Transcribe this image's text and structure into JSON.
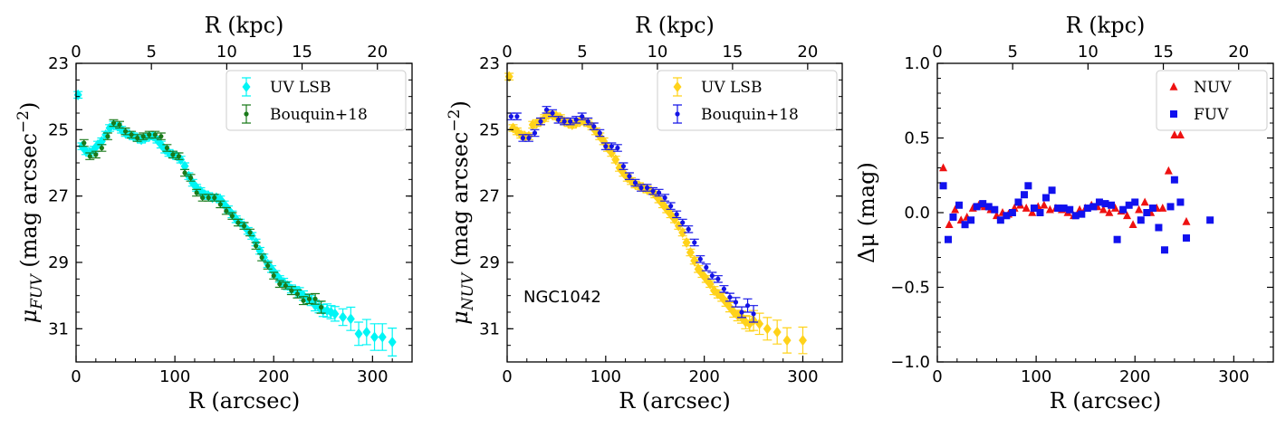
{
  "figure": {
    "title": ""
  },
  "colors": {
    "fuv_lsb": "#00f5f5",
    "fuv_bouquin": "#1a7a1a",
    "nuv_lsb": "#ffd21a",
    "nuv_bouquin": "#1414e6",
    "nuv_delta": "#ee1111",
    "fuv_delta": "#1111ee"
  },
  "chart_data": [
    {
      "type": "scatter",
      "panel": "FUV profile",
      "xlabel": "R (arcsec)",
      "ylabel": "μ_FUV (mag arcsec^-2)",
      "ylabel_parts": {
        "mu": "μ",
        "sub": "FUV",
        "rest": " (mag arcsec",
        "sup": "−2",
        "close": ")"
      },
      "top_xlabel": "R (kpc)",
      "xlim": [
        0,
        340
      ],
      "ylim": [
        32,
        23
      ],
      "top_xlim": [
        0,
        22.3
      ],
      "xticks": [
        0,
        100,
        200,
        300
      ],
      "yticks": [
        23,
        25,
        27,
        29,
        31
      ],
      "top_xticks": [
        0,
        5,
        10,
        15,
        20
      ],
      "legend": {
        "position": "top-right",
        "entries": [
          "UV LSB",
          "Bouquin+18"
        ]
      },
      "annotation": "",
      "series": [
        {
          "name": "UV LSB",
          "marker": "diamond",
          "color_key": "fuv_lsb",
          "x": [
            2,
            6,
            10,
            14,
            18,
            22,
            26,
            30,
            34,
            38,
            42,
            46,
            50,
            54,
            58,
            62,
            66,
            70,
            74,
            78,
            82,
            86,
            90,
            94,
            98,
            102,
            106,
            110,
            114,
            118,
            122,
            126,
            130,
            134,
            138,
            142,
            146,
            150,
            154,
            158,
            162,
            166,
            170,
            174,
            178,
            182,
            186,
            190,
            194,
            198,
            202,
            206,
            210,
            214,
            218,
            222,
            226,
            230,
            234,
            238,
            242,
            246,
            250,
            254,
            258,
            262,
            270,
            278,
            286,
            294,
            302,
            310,
            320
          ],
          "y": [
            23.95,
            25.5,
            25.65,
            25.7,
            25.6,
            25.45,
            25.35,
            25.15,
            24.95,
            24.85,
            24.9,
            25.0,
            25.1,
            25.15,
            25.2,
            25.25,
            25.3,
            25.25,
            25.2,
            25.2,
            25.3,
            25.45,
            25.6,
            25.7,
            25.75,
            25.8,
            25.9,
            26.1,
            26.4,
            26.6,
            26.75,
            26.85,
            26.95,
            27.0,
            27.05,
            27.05,
            27.1,
            27.25,
            27.4,
            27.55,
            27.7,
            27.8,
            27.9,
            28.05,
            28.2,
            28.4,
            28.65,
            28.85,
            29.05,
            29.2,
            29.35,
            29.5,
            29.6,
            29.7,
            29.8,
            29.85,
            29.9,
            30.0,
            30.1,
            30.15,
            30.3,
            30.35,
            30.45,
            30.45,
            30.5,
            30.55,
            30.65,
            30.7,
            31.15,
            31.1,
            31.25,
            31.25,
            31.4
          ],
          "yerr": [
            0.1,
            0.1,
            0.1,
            0.1,
            0.1,
            0.1,
            0.1,
            0.1,
            0.1,
            0.1,
            0.1,
            0.1,
            0.1,
            0.1,
            0.1,
            0.1,
            0.1,
            0.1,
            0.1,
            0.1,
            0.1,
            0.1,
            0.1,
            0.1,
            0.1,
            0.1,
            0.1,
            0.1,
            0.1,
            0.1,
            0.1,
            0.1,
            0.1,
            0.1,
            0.1,
            0.1,
            0.1,
            0.1,
            0.1,
            0.1,
            0.1,
            0.1,
            0.1,
            0.1,
            0.1,
            0.1,
            0.1,
            0.1,
            0.1,
            0.1,
            0.1,
            0.1,
            0.12,
            0.12,
            0.12,
            0.12,
            0.14,
            0.14,
            0.15,
            0.15,
            0.16,
            0.17,
            0.18,
            0.2,
            0.2,
            0.22,
            0.25,
            0.35,
            0.35,
            0.38,
            0.4,
            0.4,
            0.42
          ]
        },
        {
          "name": "Bouquin+18",
          "marker": "circle",
          "color_key": "fuv_bouquin",
          "x": [
            8,
            14,
            20,
            26,
            32,
            38,
            44,
            50,
            56,
            62,
            68,
            74,
            80,
            86,
            92,
            98,
            104,
            110,
            116,
            122,
            128,
            134,
            140,
            146,
            152,
            158,
            164,
            170,
            176,
            182,
            188,
            194,
            200,
            206,
            212,
            218,
            224,
            230,
            236,
            242,
            248
          ],
          "y": [
            25.4,
            25.8,
            25.75,
            25.55,
            25.2,
            24.8,
            24.85,
            25.05,
            25.15,
            25.25,
            25.2,
            25.15,
            25.15,
            25.2,
            25.55,
            25.75,
            25.8,
            26.3,
            26.45,
            26.9,
            27.05,
            27.05,
            27.05,
            27.25,
            27.45,
            27.6,
            27.8,
            27.9,
            28.1,
            28.5,
            28.85,
            29.1,
            29.4,
            29.65,
            29.7,
            29.85,
            29.95,
            30.15,
            30.1,
            30.1,
            30.35
          ],
          "yerr": [
            0.1,
            0.1,
            0.1,
            0.1,
            0.1,
            0.1,
            0.1,
            0.1,
            0.1,
            0.1,
            0.1,
            0.1,
            0.1,
            0.1,
            0.1,
            0.1,
            0.1,
            0.1,
            0.1,
            0.1,
            0.1,
            0.1,
            0.1,
            0.1,
            0.1,
            0.1,
            0.1,
            0.1,
            0.1,
            0.1,
            0.1,
            0.1,
            0.1,
            0.1,
            0.1,
            0.12,
            0.12,
            0.12,
            0.14,
            0.16,
            0.18
          ]
        }
      ]
    },
    {
      "type": "scatter",
      "panel": "NUV profile",
      "xlabel": "R (arcsec)",
      "ylabel": "μ_NUV (mag arcsec^-2)",
      "ylabel_parts": {
        "mu": "μ",
        "sub": "NUV",
        "rest": " (mag arcsec",
        "sup": "−2",
        "close": ")"
      },
      "top_xlabel": "R (kpc)",
      "xlim": [
        0,
        340
      ],
      "ylim": [
        32,
        23
      ],
      "top_xlim": [
        0,
        22.3
      ],
      "xticks": [
        0,
        100,
        200,
        300
      ],
      "yticks": [
        23,
        25,
        27,
        29,
        31
      ],
      "top_xticks": [
        0,
        5,
        10,
        15,
        20
      ],
      "legend": {
        "position": "top-right",
        "entries": [
          "UV LSB",
          "Bouquin+18"
        ]
      },
      "annotation": "NGC1042",
      "series": [
        {
          "name": "UV LSB",
          "marker": "diamond",
          "color_key": "nuv_lsb",
          "x": [
            2,
            6,
            10,
            14,
            18,
            22,
            26,
            30,
            34,
            38,
            42,
            46,
            50,
            54,
            58,
            62,
            66,
            70,
            74,
            78,
            82,
            86,
            90,
            94,
            98,
            102,
            106,
            110,
            114,
            118,
            122,
            126,
            130,
            134,
            138,
            142,
            146,
            150,
            154,
            158,
            162,
            166,
            170,
            174,
            178,
            182,
            186,
            190,
            194,
            198,
            202,
            206,
            210,
            214,
            218,
            222,
            226,
            230,
            234,
            238,
            242,
            246,
            250,
            256,
            264,
            274,
            284,
            300
          ],
          "y": [
            23.4,
            24.95,
            25.05,
            25.15,
            25.2,
            25.2,
            24.85,
            24.8,
            24.75,
            24.65,
            24.55,
            24.55,
            24.6,
            24.65,
            24.75,
            24.8,
            24.85,
            24.8,
            24.75,
            24.75,
            24.8,
            24.9,
            25.05,
            25.2,
            25.35,
            25.55,
            25.7,
            25.9,
            26.15,
            26.3,
            26.45,
            26.55,
            26.65,
            26.7,
            26.75,
            26.8,
            26.85,
            26.95,
            27.1,
            27.25,
            27.4,
            27.55,
            27.7,
            27.9,
            28.1,
            28.4,
            28.7,
            28.95,
            29.2,
            29.35,
            29.5,
            29.65,
            29.85,
            29.95,
            30.05,
            30.2,
            30.35,
            30.5,
            30.6,
            30.65,
            30.8,
            30.85,
            30.75,
            30.85,
            31.0,
            31.1,
            31.35,
            31.35
          ],
          "yerr": [
            0.1,
            0.1,
            0.1,
            0.1,
            0.1,
            0.1,
            0.1,
            0.1,
            0.1,
            0.1,
            0.1,
            0.1,
            0.1,
            0.1,
            0.1,
            0.1,
            0.1,
            0.1,
            0.1,
            0.1,
            0.1,
            0.1,
            0.1,
            0.1,
            0.1,
            0.1,
            0.1,
            0.1,
            0.1,
            0.1,
            0.1,
            0.1,
            0.1,
            0.1,
            0.1,
            0.1,
            0.1,
            0.1,
            0.1,
            0.1,
            0.1,
            0.1,
            0.1,
            0.1,
            0.1,
            0.1,
            0.1,
            0.1,
            0.1,
            0.1,
            0.1,
            0.1,
            0.12,
            0.12,
            0.12,
            0.12,
            0.14,
            0.15,
            0.16,
            0.18,
            0.2,
            0.22,
            0.3,
            0.32,
            0.34,
            0.36,
            0.38,
            0.4
          ]
        },
        {
          "name": "Bouquin+18",
          "marker": "circle",
          "color_key": "nuv_bouquin",
          "x": [
            4,
            10,
            16,
            22,
            28,
            34,
            40,
            46,
            52,
            58,
            64,
            70,
            76,
            82,
            88,
            94,
            100,
            106,
            112,
            118,
            124,
            130,
            136,
            142,
            148,
            154,
            160,
            166,
            172,
            178,
            184,
            190,
            196,
            202,
            208,
            214,
            220,
            226,
            232,
            238,
            244,
            250
          ],
          "y": [
            24.6,
            24.6,
            25.25,
            25.25,
            25.1,
            24.75,
            24.4,
            24.5,
            24.7,
            24.75,
            24.75,
            24.7,
            24.6,
            24.75,
            24.9,
            25.1,
            25.5,
            25.5,
            25.55,
            26.1,
            26.4,
            26.6,
            26.75,
            26.75,
            26.85,
            26.9,
            27.05,
            27.3,
            27.55,
            27.8,
            28.0,
            28.4,
            28.9,
            29.15,
            29.4,
            29.5,
            29.8,
            30.05,
            30.2,
            30.5,
            30.3,
            30.55
          ],
          "yerr": [
            0.1,
            0.1,
            0.1,
            0.1,
            0.1,
            0.1,
            0.1,
            0.1,
            0.1,
            0.1,
            0.1,
            0.1,
            0.1,
            0.1,
            0.1,
            0.1,
            0.1,
            0.1,
            0.1,
            0.1,
            0.1,
            0.1,
            0.1,
            0.1,
            0.1,
            0.1,
            0.1,
            0.1,
            0.1,
            0.1,
            0.1,
            0.1,
            0.1,
            0.1,
            0.1,
            0.1,
            0.1,
            0.12,
            0.14,
            0.16,
            0.2,
            0.25
          ]
        }
      ]
    },
    {
      "type": "scatter",
      "panel": "Residuals",
      "xlabel": "R (arcsec)",
      "ylabel": "Δμ (mag)",
      "ylabel_parts": {
        "mu": "Δμ",
        "sub": "",
        "rest": " (mag",
        "sup": "",
        "close": ")"
      },
      "top_xlabel": "R (kpc)",
      "xlim": [
        0,
        340
      ],
      "ylim": [
        -1.0,
        1.0
      ],
      "top_xlim": [
        0,
        22.3
      ],
      "xticks": [
        0,
        100,
        200,
        300
      ],
      "yticks": [
        -1.0,
        -0.5,
        0.0,
        0.5,
        1.0
      ],
      "ytick_labels": [
        "−1.0",
        "−0.5",
        "0.0",
        "0.5",
        "1.0"
      ],
      "top_xticks": [
        0,
        5,
        10,
        15,
        20
      ],
      "legend": {
        "position": "top-right",
        "entries": [
          "NUV",
          "FUV"
        ]
      },
      "annotation": "",
      "series": [
        {
          "name": "NUV",
          "marker": "triangle",
          "color_key": "nuv_delta",
          "x": [
            6,
            12,
            18,
            24,
            30,
            36,
            42,
            48,
            54,
            60,
            66,
            72,
            78,
            84,
            90,
            96,
            102,
            108,
            114,
            120,
            126,
            132,
            138,
            144,
            150,
            156,
            162,
            168,
            174,
            180,
            186,
            192,
            198,
            204,
            210,
            216,
            222,
            228,
            234,
            240,
            246,
            252
          ],
          "y": [
            0.3,
            -0.08,
            0.02,
            -0.05,
            -0.03,
            0.03,
            0.05,
            0.04,
            0.02,
            -0.02,
            0.0,
            -0.01,
            0.03,
            0.05,
            0.03,
            0.0,
            0.04,
            0.05,
            0.02,
            0.03,
            0.02,
            0.0,
            -0.02,
            0.02,
            0.03,
            0.05,
            0.04,
            0.02,
            0.0,
            0.03,
            0.01,
            -0.02,
            -0.08,
            0.02,
            0.07,
            0.0,
            0.03,
            0.03,
            0.28,
            0.52,
            0.52,
            -0.06
          ],
          "yerr": []
        },
        {
          "name": "FUV",
          "marker": "square",
          "color_key": "fuv_delta",
          "x": [
            6,
            11,
            16,
            22,
            28,
            34,
            40,
            46,
            52,
            58,
            64,
            70,
            76,
            82,
            88,
            92,
            98,
            104,
            110,
            116,
            122,
            128,
            134,
            140,
            146,
            152,
            158,
            164,
            170,
            176,
            182,
            188,
            194,
            200,
            206,
            212,
            218,
            224,
            230,
            236,
            240,
            246,
            252,
            276
          ],
          "y": [
            0.18,
            -0.18,
            -0.03,
            0.05,
            -0.08,
            -0.05,
            0.04,
            0.06,
            0.04,
            0.02,
            -0.05,
            -0.02,
            0.0,
            0.07,
            0.12,
            0.18,
            0.03,
            0.0,
            0.1,
            0.15,
            0.03,
            0.03,
            0.02,
            -0.02,
            -0.01,
            0.03,
            0.04,
            0.07,
            0.06,
            0.05,
            -0.18,
            0.02,
            0.05,
            0.07,
            -0.05,
            0.0,
            0.03,
            -0.1,
            -0.25,
            0.04,
            0.22,
            0.07,
            -0.17,
            -0.05
          ],
          "yerr": []
        }
      ]
    }
  ]
}
